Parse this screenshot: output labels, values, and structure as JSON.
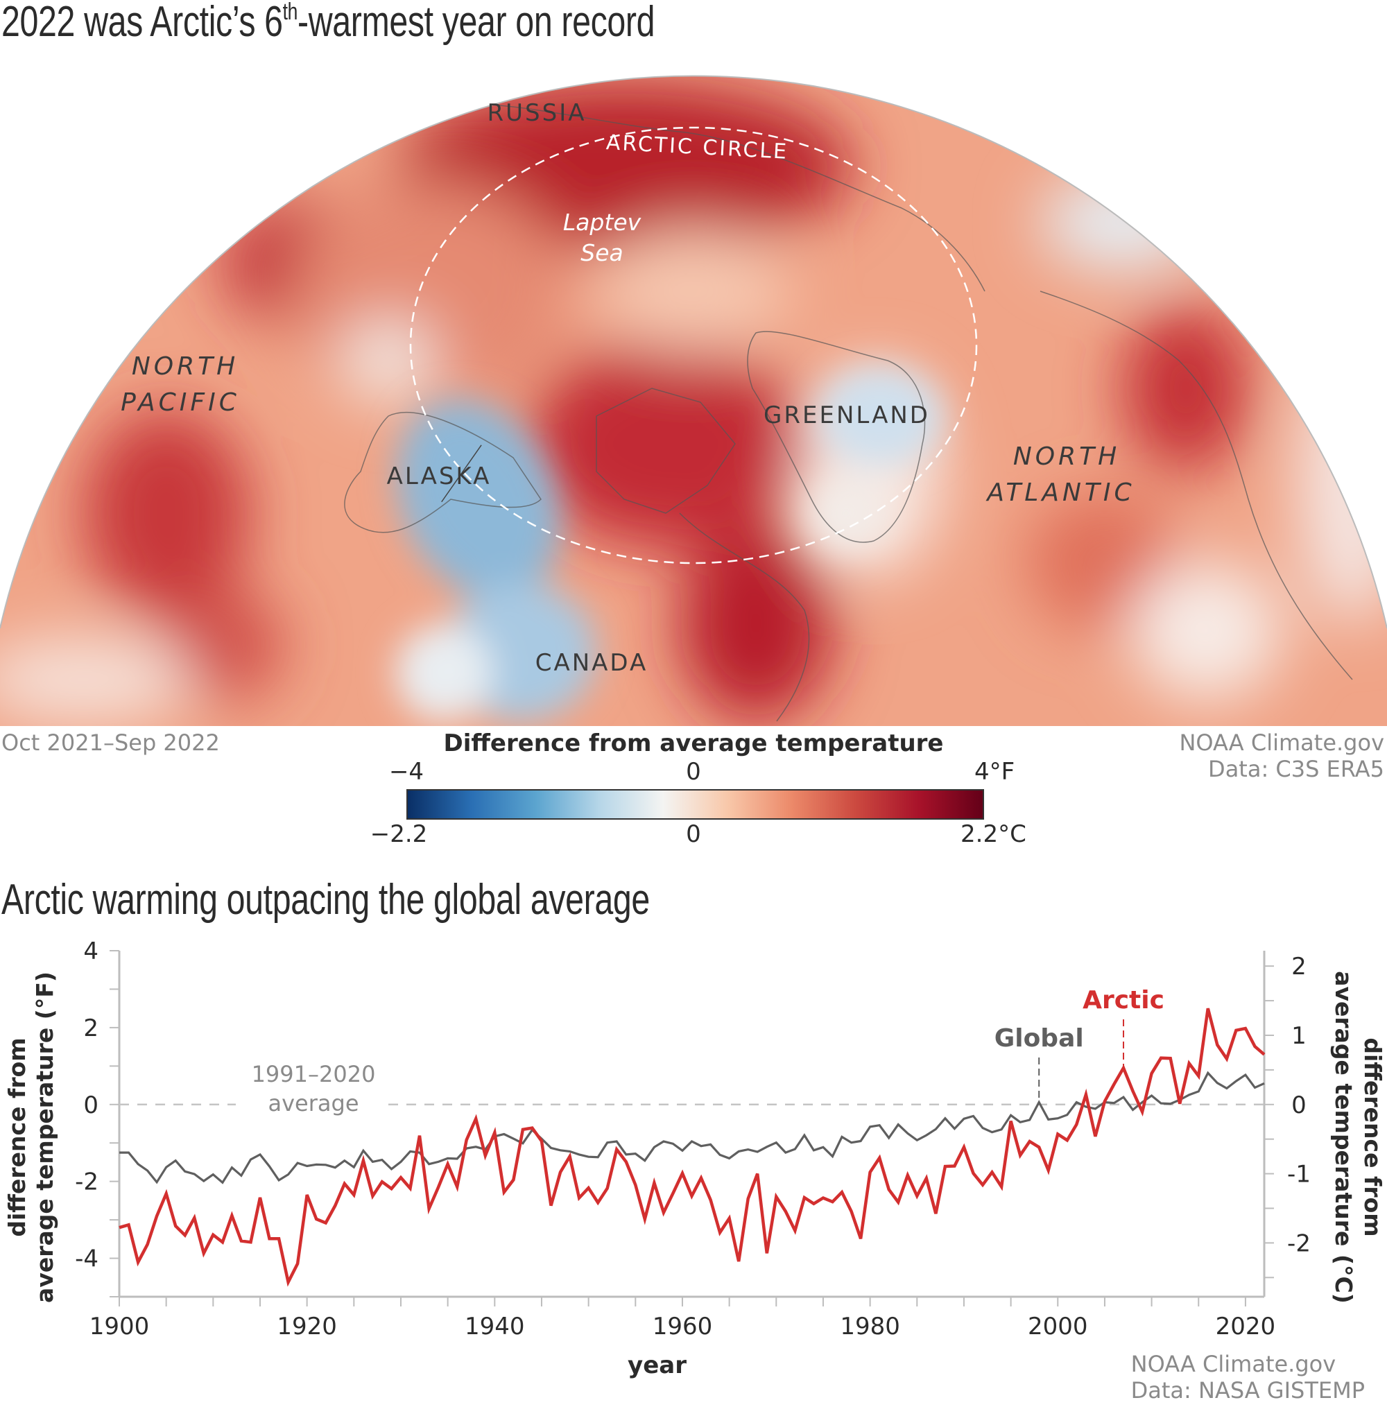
{
  "map_section": {
    "title_main": "2022 was Arctic’s 6",
    "title_sup": "th",
    "title_rest": "-warmest year on record",
    "period": "Oct 2021–Sep 2022",
    "credit_line1": "NOAA Climate.gov",
    "credit_line2": "Data: C3S ERA5",
    "labels": {
      "russia": "RUSSIA",
      "arctic_circle": "ARCTIC CIRCLE",
      "laptev_1": "Laptev",
      "laptev_2": "Sea",
      "north_pacific_1": "NORTH",
      "north_pacific_2": "PACIFIC",
      "greenland": "GREENLAND",
      "alaska": "ALASKA",
      "north_atlantic_1": "NORTH",
      "north_atlantic_2": "ATLANTIC",
      "canada": "CANADA"
    },
    "colorbar": {
      "title": "Difference from average temperature",
      "f_min": "−4",
      "f_mid": "0",
      "f_max": "4°F",
      "c_min": "−2.2",
      "c_mid": "0",
      "c_max": "2.2°C",
      "colors": [
        "#0a2f66",
        "#2a6fb4",
        "#5ba4cf",
        "#b6d6e8",
        "#f4f4f2",
        "#f8c8aa",
        "#ec8a6a",
        "#cc4a40",
        "#a8122a",
        "#640018"
      ]
    }
  },
  "chart_section": {
    "title": "Arctic warming outpacing the global average",
    "credit_line1": "NOAA Climate.gov",
    "credit_line2": "Data: NASA GISTEMP"
  },
  "chart_data": {
    "type": "line",
    "title": "Arctic warming outpacing the global average",
    "xlabel": "year",
    "ylabel_left": [
      "difference from",
      "average temperature (°F)"
    ],
    "ylabel_right": [
      "difference from",
      "average temperature (°C)"
    ],
    "xlim": [
      1900,
      2022
    ],
    "ylim_f": [
      -5,
      4
    ],
    "x_ticks": [
      "1900",
      "1920",
      "1940",
      "1960",
      "1980",
      "2000",
      "2020"
    ],
    "y_ticks_left": [
      "4",
      "2",
      "0",
      "-2",
      "-4"
    ],
    "y_ticks_right": [
      "2",
      "1",
      "0",
      "-1",
      "-2"
    ],
    "baseline_label": [
      "1991–2020",
      "average"
    ],
    "grid": false,
    "colors": {
      "Arctic": "#d32f2f",
      "Global": "#5f5f5f",
      "baseline": "#c4c4c4",
      "axis": "#bdbdbd"
    },
    "x_start": 1900,
    "series": [
      {
        "name": "Arctic",
        "annotation_year": 2007,
        "values": [
          -3.2,
          -3.13,
          -4.1,
          -3.64,
          -2.9,
          -2.32,
          -3.16,
          -3.4,
          -2.95,
          -3.87,
          -3.39,
          -3.58,
          -2.89,
          -3.55,
          -3.58,
          -2.42,
          -3.49,
          -3.49,
          -4.62,
          -4.14,
          -2.35,
          -2.98,
          -3.08,
          -2.63,
          -2.06,
          -2.35,
          -1.46,
          -2.38,
          -2.01,
          -2.19,
          -1.9,
          -2.18,
          -0.81,
          -2.71,
          -2.15,
          -1.55,
          -2.14,
          -0.92,
          -0.37,
          -1.33,
          -0.73,
          -2.28,
          -1.96,
          -0.65,
          -0.61,
          -0.95,
          -2.63,
          -1.76,
          -1.35,
          -2.43,
          -2.17,
          -2.55,
          -2.18,
          -1.17,
          -1.49,
          -2.09,
          -2.98,
          -2.04,
          -2.81,
          -2.31,
          -1.79,
          -2.38,
          -1.91,
          -2.48,
          -3.33,
          -2.96,
          -4.08,
          -2.45,
          -1.8,
          -3.87,
          -2.4,
          -2.78,
          -3.28,
          -2.42,
          -2.58,
          -2.43,
          -2.53,
          -2.28,
          -2.78,
          -3.49,
          -1.76,
          -1.39,
          -2.21,
          -2.54,
          -1.84,
          -2.38,
          -1.92,
          -2.84,
          -1.61,
          -1.6,
          -1.11,
          -1.79,
          -2.09,
          -1.76,
          -2.14,
          -0.43,
          -1.32,
          -0.96,
          -1.11,
          -1.71,
          -0.77,
          -0.93,
          -0.52,
          0.26,
          -0.83,
          0.08,
          0.53,
          0.95,
          0.35,
          -0.19,
          0.81,
          1.21,
          1.2,
          0.02,
          1.07,
          0.74,
          2.5,
          1.55,
          1.19,
          1.93,
          1.98,
          1.51,
          1.3
        ]
      },
      {
        "name": "Global",
        "annotation_year": 1998,
        "values": [
          -1.25,
          -1.25,
          -1.55,
          -1.72,
          -2.02,
          -1.63,
          -1.46,
          -1.74,
          -1.81,
          -1.99,
          -1.82,
          -2.03,
          -1.64,
          -1.85,
          -1.43,
          -1.3,
          -1.61,
          -1.97,
          -1.82,
          -1.52,
          -1.6,
          -1.56,
          -1.57,
          -1.64,
          -1.46,
          -1.63,
          -1.2,
          -1.49,
          -1.44,
          -1.68,
          -1.49,
          -1.22,
          -1.25,
          -1.55,
          -1.49,
          -1.4,
          -1.41,
          -1.14,
          -1.1,
          -1.17,
          -0.83,
          -0.77,
          -0.89,
          -1.01,
          -0.66,
          -0.89,
          -1.13,
          -1.19,
          -1.22,
          -1.3,
          -1.36,
          -1.37,
          -0.99,
          -0.96,
          -1.3,
          -1.28,
          -1.46,
          -1.11,
          -0.96,
          -1.02,
          -1.2,
          -0.96,
          -1.08,
          -1.04,
          -1.31,
          -1.4,
          -1.22,
          -1.17,
          -1.23,
          -1.1,
          -0.99,
          -1.25,
          -1.16,
          -0.8,
          -1.19,
          -1.11,
          -1.35,
          -0.84,
          -0.99,
          -0.95,
          -0.58,
          -0.54,
          -0.87,
          -0.52,
          -0.75,
          -0.93,
          -0.8,
          -0.64,
          -0.36,
          -0.63,
          -0.37,
          -0.3,
          -0.61,
          -0.72,
          -0.65,
          -0.28,
          -0.46,
          -0.4,
          0.06,
          -0.39,
          -0.36,
          -0.27,
          0.06,
          -0.06,
          -0.11,
          0.06,
          0.04,
          0.19,
          -0.14,
          0.06,
          0.23,
          0.03,
          0.02,
          0.12,
          0.25,
          0.34,
          0.82,
          0.56,
          0.42,
          0.61,
          0.77,
          0.44,
          0.55
        ]
      }
    ]
  }
}
